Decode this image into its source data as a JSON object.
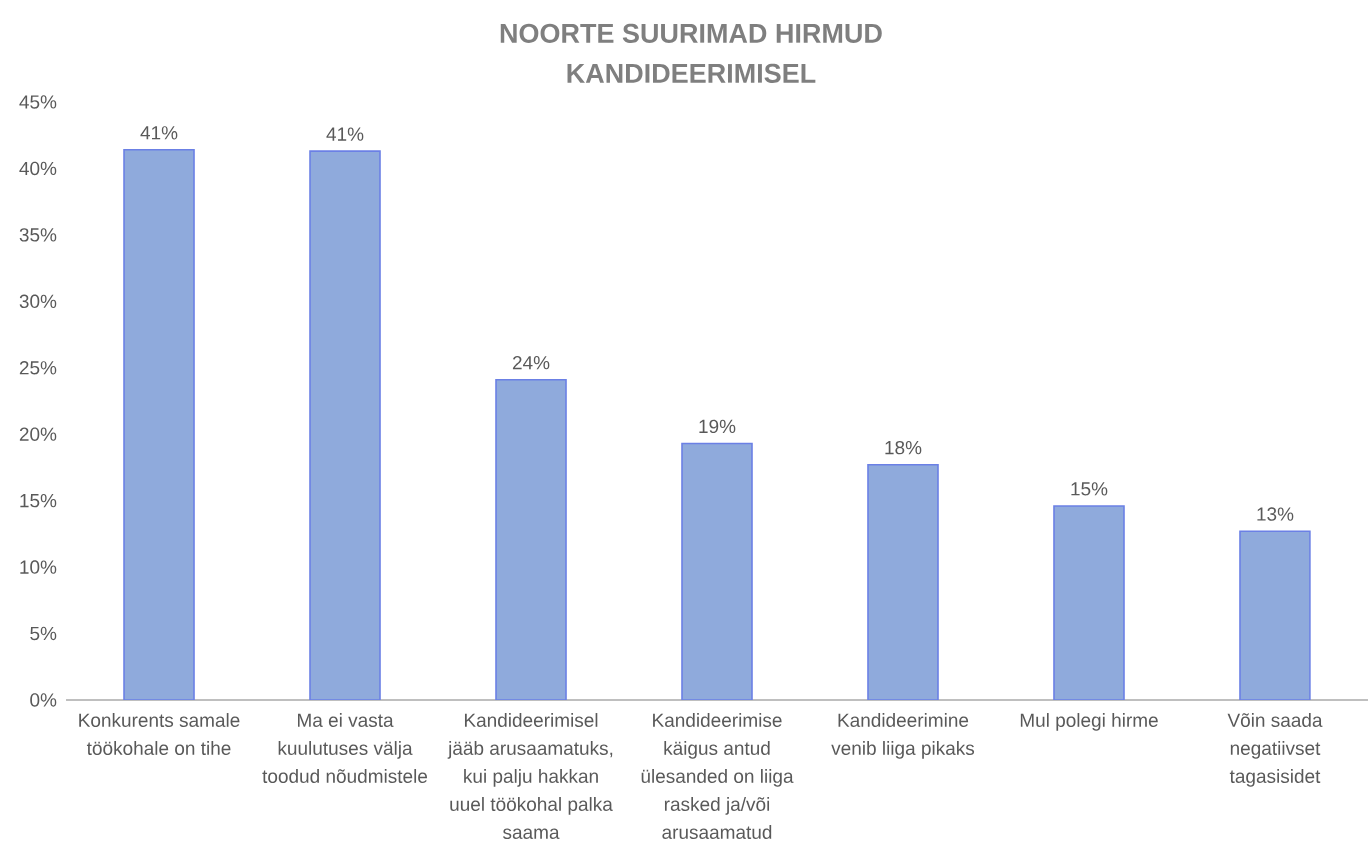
{
  "chart_data": {
    "type": "bar",
    "title": "NOORTE SUURIMAD HIRMUD KANDIDEERIMISEL",
    "categories": [
      "Konkurents samale töökohale on tihe",
      "Ma ei vasta kuulutuses välja toodud nõudmistele",
      "Kandideerimisel jääb arusaamatuks, kui palju hakkan uuel töökohal palka saama",
      "Kandideerimise käigus antud ülesanded on liiga rasked ja/või arusaamatud",
      "Kandideerimine venib liiga pikaks",
      "Mul polegi hirme",
      "Võin saada negatiivset tagasisidet"
    ],
    "values": [
      41.4,
      41.3,
      24.1,
      19.3,
      17.7,
      14.6,
      12.7
    ],
    "value_labels": [
      "41%",
      "41%",
      "24%",
      "19%",
      "18%",
      "15%",
      "13%"
    ],
    "color": "#8faadc",
    "ylim": [
      0,
      45
    ],
    "yticks": [
      {
        "value": 0,
        "label": "0%"
      },
      {
        "value": 5,
        "label": "5%"
      },
      {
        "value": 10,
        "label": "10%"
      },
      {
        "value": 15,
        "label": "15%"
      },
      {
        "value": 20,
        "label": "20%"
      },
      {
        "value": 25,
        "label": "25%"
      },
      {
        "value": 30,
        "label": "30%"
      },
      {
        "value": 35,
        "label": "35%"
      },
      {
        "value": 40,
        "label": "40%"
      },
      {
        "value": 45,
        "label": "45%"
      }
    ]
  }
}
